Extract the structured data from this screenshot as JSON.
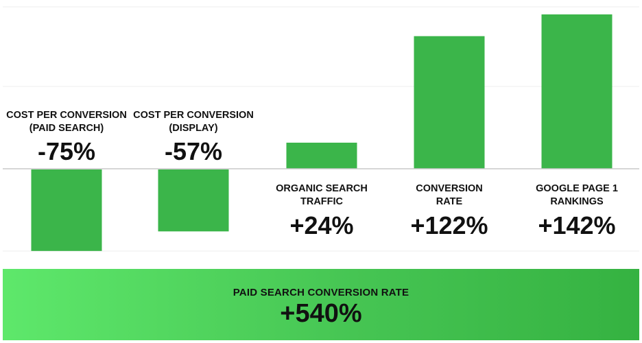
{
  "chart_data": {
    "type": "bar",
    "categories": [
      [
        "COST PER CONVERSION",
        "(PAID SEARCH)"
      ],
      [
        "COST PER CONVERSION",
        "(DISPLAY)"
      ],
      [
        "ORGANIC SEARCH",
        "TRAFFIC"
      ],
      [
        "CONVERSION",
        "RATE"
      ],
      [
        "GOOGLE PAGE 1",
        "RANKINGS"
      ]
    ],
    "values": [
      -75,
      -57,
      24,
      122,
      142
    ],
    "value_labels": [
      "-75%",
      "-57%",
      "+24%",
      "+122%",
      "+142%"
    ],
    "ylim": [
      -75,
      142
    ],
    "bar_color": "#3bb54a",
    "grid": true
  },
  "banner": {
    "title": "PAID SEARCH CONVERSION RATE",
    "value": "+540%"
  },
  "colors": {
    "bar": "#3bb54a",
    "gridline": "#ececec",
    "zero_line": "#c8c8c8",
    "text": "#111111"
  }
}
